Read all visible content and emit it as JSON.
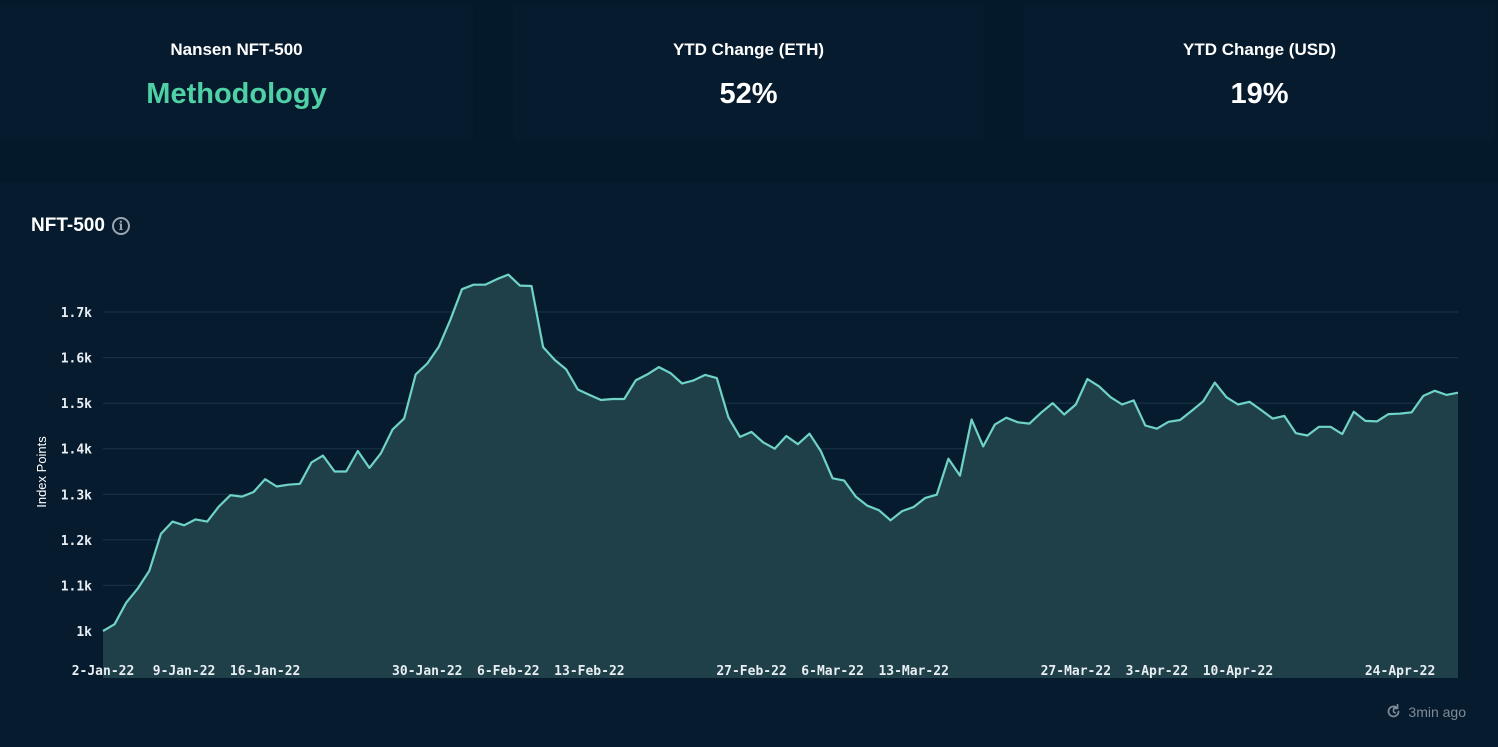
{
  "cards": [
    {
      "title": "Nansen NFT-500",
      "value": "Methodology"
    },
    {
      "title": "YTD Change (ETH)",
      "value": "52%"
    },
    {
      "title": "YTD Change (USD)",
      "value": "19%"
    }
  ],
  "panel": {
    "title": "NFT-500",
    "updated": "3min ago"
  },
  "colors": {
    "line": "#6fd3c7",
    "area": "#1f4048",
    "grid": "#1b3548",
    "accent": "#4fd1a5"
  },
  "chart_data": {
    "type": "area",
    "title": "NFT-500",
    "xlabel": "",
    "ylabel": "Index Points",
    "ylim": [
      900,
      1800
    ],
    "yticks": [
      1000,
      1100,
      1200,
      1300,
      1400,
      1500,
      1600,
      1700
    ],
    "ytick_labels": [
      "1k",
      "1.1k",
      "1.2k",
      "1.3k",
      "1.4k",
      "1.5k",
      "1.6k",
      "1.7k"
    ],
    "x_start": "2022-01-02",
    "xticks": [
      {
        "date": "2022-01-02",
        "label": "2-Jan-22"
      },
      {
        "date": "2022-01-09",
        "label": "9-Jan-22"
      },
      {
        "date": "2022-01-16",
        "label": "16-Jan-22"
      },
      {
        "date": "2022-01-30",
        "label": "30-Jan-22"
      },
      {
        "date": "2022-02-06",
        "label": "6-Feb-22"
      },
      {
        "date": "2022-02-13",
        "label": "13-Feb-22"
      },
      {
        "date": "2022-02-27",
        "label": "27-Feb-22"
      },
      {
        "date": "2022-03-06",
        "label": "6-Mar-22"
      },
      {
        "date": "2022-03-13",
        "label": "13-Mar-22"
      },
      {
        "date": "2022-03-27",
        "label": "27-Mar-22"
      },
      {
        "date": "2022-04-03",
        "label": "3-Apr-22"
      },
      {
        "date": "2022-04-10",
        "label": "10-Apr-22"
      },
      {
        "date": "2022-04-24",
        "label": "24-Apr-22"
      }
    ],
    "grid": true,
    "series": [
      {
        "values": [
          1000,
          1015,
          1062,
          1093,
          1132,
          1213,
          1240,
          1232,
          1245,
          1240,
          1273,
          1298,
          1295,
          1305,
          1333,
          1317,
          1321,
          1323,
          1370,
          1385,
          1350,
          1350,
          1395,
          1358,
          1390,
          1442,
          1466,
          1563,
          1587,
          1624,
          1683,
          1750,
          1760,
          1760,
          1772,
          1782,
          1758,
          1757,
          1623,
          1595,
          1574,
          1530,
          1518,
          1507,
          1509,
          1509,
          1550,
          1563,
          1579,
          1566,
          1543,
          1550,
          1562,
          1555,
          1469,
          1426,
          1437,
          1414,
          1400,
          1428,
          1410,
          1433,
          1394,
          1335,
          1330,
          1295,
          1275,
          1265,
          1243,
          1263,
          1272,
          1292,
          1299,
          1378,
          1341,
          1464,
          1405,
          1453,
          1468,
          1458,
          1455,
          1479,
          1500,
          1475,
          1497,
          1553,
          1537,
          1513,
          1497,
          1506,
          1451,
          1444,
          1459,
          1463,
          1483,
          1504,
          1545,
          1513,
          1497,
          1503,
          1485,
          1466,
          1472,
          1434,
          1429,
          1448,
          1448,
          1432,
          1481,
          1461,
          1460,
          1476,
          1477,
          1480,
          1516,
          1527,
          1518,
          1523
        ]
      }
    ]
  }
}
